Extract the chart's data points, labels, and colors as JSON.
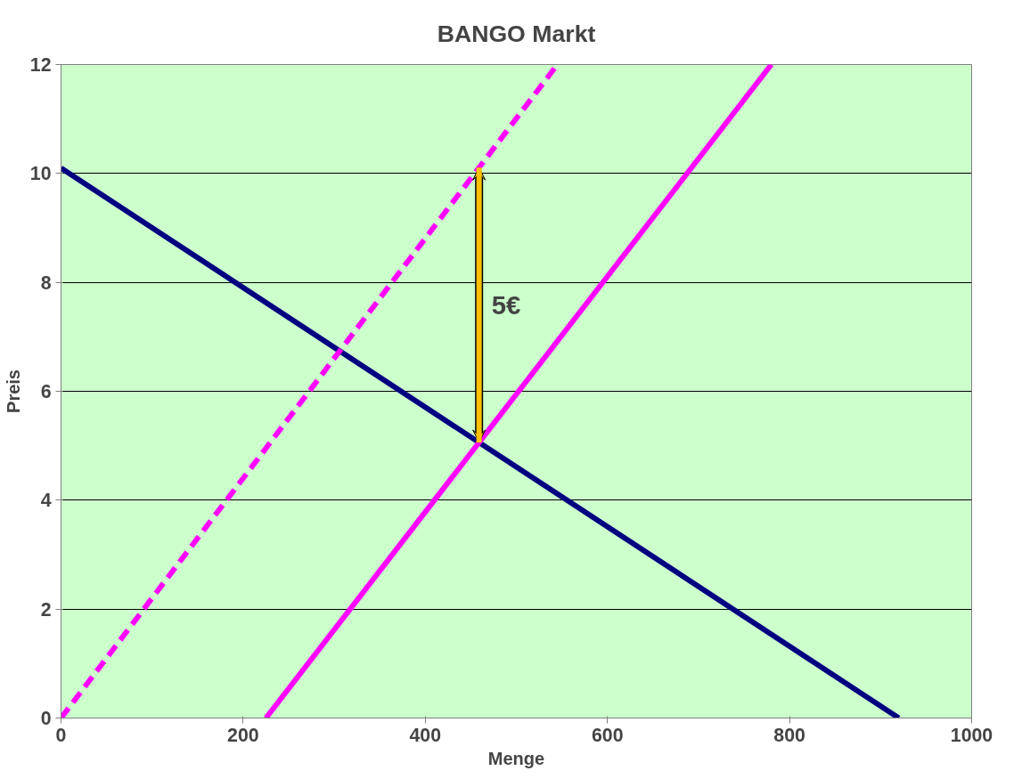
{
  "chart_data": {
    "type": "line",
    "title": "BANGO Markt",
    "xlabel": "Menge",
    "ylabel": "Preis",
    "xlim": [
      0,
      1000
    ],
    "ylim": [
      0,
      12
    ],
    "xticks": [
      0,
      200,
      400,
      600,
      800,
      1000
    ],
    "yticks": [
      0,
      2,
      4,
      6,
      8,
      10,
      12
    ],
    "grid": "y",
    "marker": "none",
    "series": [
      {
        "color": "#000080",
        "x": [
          0,
          920
        ],
        "values": [
          10.1,
          0
        ],
        "line_style": "solid"
      },
      {
        "color": "#ff00ff",
        "x": [
          225,
          780
        ],
        "values": [
          0,
          12
        ],
        "line_style": "solid"
      },
      {
        "color": "#ff00ff",
        "x": [
          0,
          545
        ],
        "values": [
          0,
          12
        ],
        "line_style": "dashed"
      }
    ],
    "annotations": [
      "5€"
    ]
  }
}
